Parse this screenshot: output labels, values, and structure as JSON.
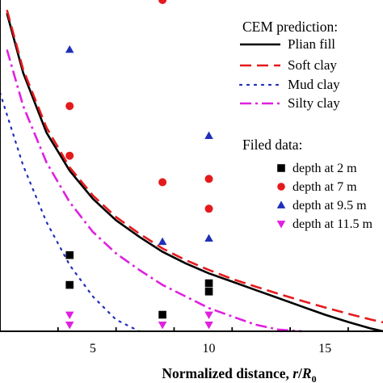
{
  "chart_data": {
    "type": "scatter",
    "xlabel": "Normalized distance, r/R0",
    "xlabel_parts": {
      "prefix": "Normalized distance, ",
      "r": "r",
      "slash": "/",
      "R": "R",
      "sub": "0"
    },
    "xlim": [
      1.0,
      17.5
    ],
    "ylim": [
      0.0,
      1.0
    ],
    "x_ticks": [
      5,
      10,
      15
    ],
    "x_ticks_labels": [
      "5",
      "10",
      "15"
    ],
    "legend": {
      "placement": "top-right",
      "cem_title": "CEM prediction:",
      "field_title": "Filed data:"
    },
    "lines": [
      {
        "name": "Plian fill",
        "color": "#000000",
        "style": "solid",
        "x": [
          1.3,
          2,
          3,
          4,
          5,
          6,
          7,
          8,
          9,
          10,
          11,
          12,
          13,
          14,
          15,
          16,
          17,
          17.5
        ],
        "y": [
          0.96,
          0.78,
          0.6,
          0.485,
          0.4,
          0.335,
          0.285,
          0.24,
          0.205,
          0.175,
          0.15,
          0.125,
          0.1,
          0.075,
          0.05,
          0.028,
          0.008,
          0.0
        ]
      },
      {
        "name": "Soft clay",
        "color": "#e41a1c",
        "style": "dashed",
        "x": [
          1.3,
          2,
          3,
          4,
          5,
          6,
          7,
          8,
          9,
          10,
          11,
          12,
          13,
          14,
          15,
          16,
          17,
          17.5
        ],
        "y": [
          0.97,
          0.79,
          0.615,
          0.495,
          0.41,
          0.345,
          0.295,
          0.25,
          0.215,
          0.185,
          0.158,
          0.135,
          0.113,
          0.092,
          0.072,
          0.053,
          0.035,
          0.027
        ]
      },
      {
        "name": "Mud clay",
        "color": "#1f2fb8",
        "style": "dotted",
        "x": [
          1.0,
          2,
          3,
          4,
          5,
          6,
          7
        ],
        "y": [
          0.72,
          0.5,
          0.33,
          0.2,
          0.105,
          0.035,
          0.0
        ]
      },
      {
        "name": "Silty clay",
        "color": "#e020e0",
        "style": "dash-dot",
        "x": [
          1.3,
          2,
          3,
          4,
          5,
          6,
          7,
          8,
          9,
          10,
          11,
          12,
          13,
          14
        ],
        "y": [
          0.85,
          0.68,
          0.51,
          0.39,
          0.3,
          0.235,
          0.185,
          0.14,
          0.105,
          0.07,
          0.045,
          0.02,
          0.005,
          0.0
        ]
      }
    ],
    "points": [
      {
        "name": "depth at 2 m",
        "marker": "square",
        "color": "#000000",
        "x": [
          4,
          4,
          8,
          10,
          10
        ],
        "y": [
          0.23,
          0.14,
          0.05,
          0.145,
          0.12
        ]
      },
      {
        "name": "depth at 7 m",
        "marker": "circle",
        "color": "#e41a1c",
        "x": [
          4,
          4,
          8,
          8,
          10,
          10
        ],
        "y": [
          0.68,
          0.53,
          1.0,
          0.45,
          0.46,
          0.37
        ]
      },
      {
        "name": "depth at 9.5 m",
        "marker": "triangle-up",
        "color": "#1f2fb8",
        "x": [
          4,
          8,
          10,
          10
        ],
        "y": [
          0.85,
          0.27,
          0.59,
          0.28
        ]
      },
      {
        "name": "depth at 11.5 m",
        "marker": "triangle-down",
        "color": "#e020e0",
        "x": [
          4,
          4,
          8,
          10,
          10
        ],
        "y": [
          0.05,
          0.02,
          0.02,
          0.05,
          0.02
        ]
      }
    ]
  }
}
